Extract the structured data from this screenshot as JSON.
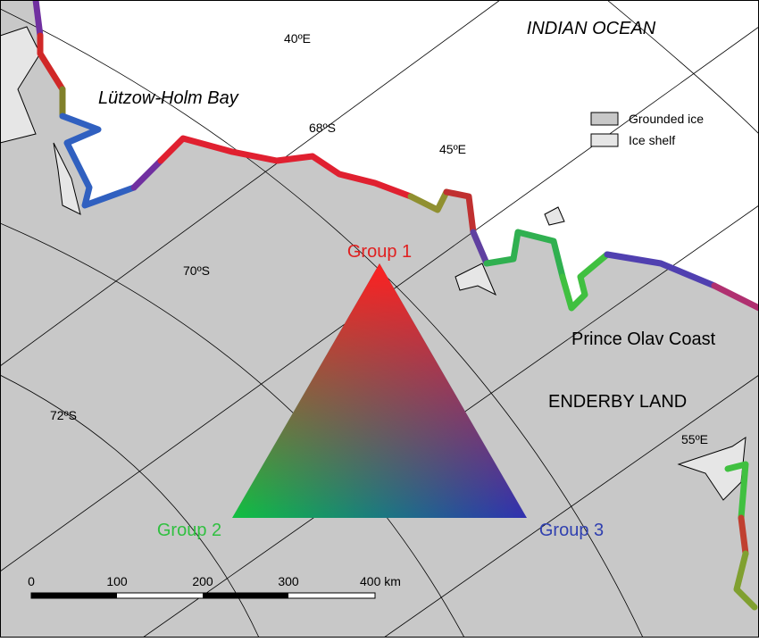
{
  "map": {
    "labels": {
      "ocean": "INDIAN OCEAN",
      "bay": "Lützow-Holm Bay",
      "coast": "Prince Olav Coast",
      "land": "ENDERBY LAND"
    },
    "graticule": [
      "40ºE",
      "68ºS",
      "45ºE",
      "70ºS",
      "72ºS",
      "55ºE"
    ],
    "legend": [
      "Grounded ice",
      "Ice shelf"
    ],
    "ternary": {
      "top": "Group 1",
      "left": "Group 2",
      "right": "Group 3"
    },
    "scale_bar": [
      "0",
      "100",
      "200",
      "300",
      "400 km"
    ]
  }
}
